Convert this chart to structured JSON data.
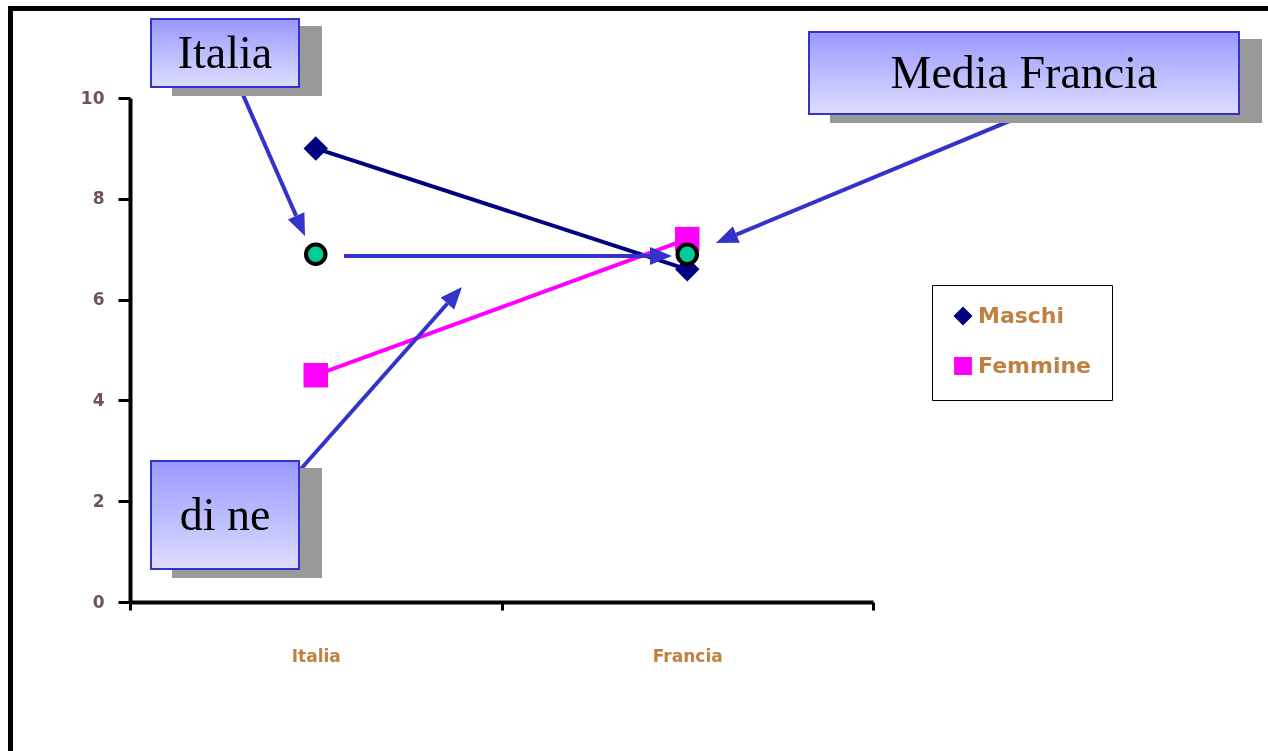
{
  "chart_data": {
    "type": "line",
    "categories": [
      "Italia",
      "Francia"
    ],
    "series": [
      {
        "name": "Maschi",
        "color": "#000080",
        "marker": "diamond",
        "values": [
          9.0,
          6.6
        ]
      },
      {
        "name": "Femmine",
        "color": "#ff00ff",
        "marker": "square",
        "values": [
          4.5,
          7.2
        ]
      },
      {
        "type": "scatter",
        "color": "#00cc99",
        "marker": "circle",
        "values": [
          6.9,
          6.9
        ]
      }
    ],
    "ylim": [
      0,
      10
    ],
    "yticks": [
      0,
      2,
      4,
      6,
      8,
      10
    ],
    "legend": "right",
    "annotations": [
      "Italia",
      "Media Francia",
      "di ne"
    ]
  }
}
